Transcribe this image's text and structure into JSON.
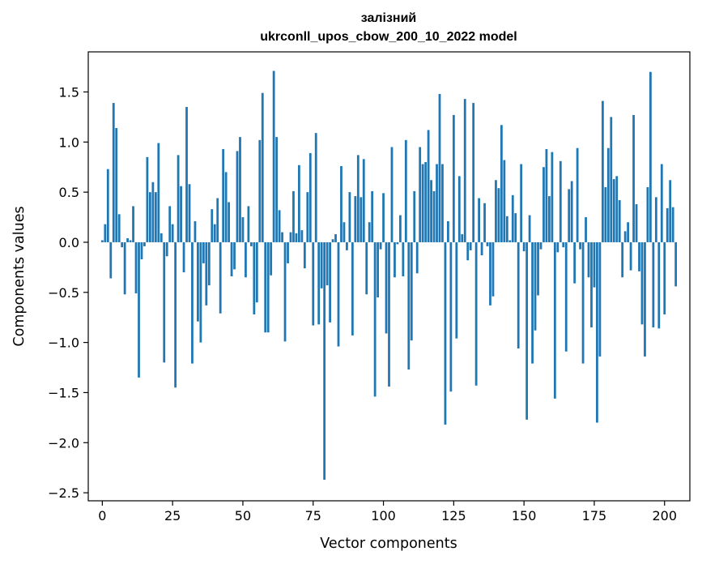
{
  "chart_data": {
    "type": "bar",
    "title_line1": "залізний",
    "title_line2": "ukrconll_upos_cbow_200_10_2022 model",
    "xlabel": "Vector components",
    "ylabel": "Components values",
    "xlim": [
      -5,
      209
    ],
    "ylim": [
      -2.58,
      1.9
    ],
    "xticks": [
      0,
      25,
      50,
      75,
      100,
      125,
      150,
      175,
      200
    ],
    "yticks": [
      -2.5,
      -2.0,
      -1.5,
      -1.0,
      -0.5,
      0.0,
      0.5,
      1.0,
      1.5
    ],
    "ytick_labels": [
      "−2.5",
      "−2.0",
      "−1.5",
      "−1.0",
      "−0.5",
      "0.0",
      "0.5",
      "1.0",
      "1.5"
    ],
    "xtick_labels": [
      "0",
      "25",
      "50",
      "75",
      "100",
      "125",
      "150",
      "175",
      "200"
    ],
    "bar_color": "#1f77b4",
    "values": [
      0.02,
      0.18,
      0.73,
      -0.36,
      1.39,
      1.14,
      0.28,
      -0.05,
      -0.52,
      0.04,
      0.02,
      0.36,
      -0.51,
      -1.35,
      -0.17,
      -0.04,
      0.85,
      0.5,
      0.6,
      0.5,
      0.99,
      0.09,
      -1.2,
      -0.14,
      0.36,
      0.18,
      -1.45,
      0.87,
      0.56,
      -0.3,
      1.35,
      0.58,
      -1.21,
      0.21,
      -0.79,
      -1.0,
      -0.21,
      -0.63,
      -0.43,
      0.33,
      0.18,
      0.44,
      -0.71,
      0.93,
      0.7,
      0.4,
      -0.34,
      -0.27,
      0.91,
      1.05,
      0.25,
      -0.35,
      0.36,
      -0.04,
      -0.72,
      -0.6,
      1.02,
      1.49,
      -0.9,
      -0.9,
      -0.33,
      1.71,
      1.05,
      0.32,
      0.1,
      -0.99,
      -0.21,
      0.1,
      0.51,
      0.09,
      0.77,
      0.12,
      -0.26,
      0.5,
      0.89,
      -0.83,
      1.09,
      -0.82,
      -0.46,
      -2.37,
      -0.43,
      -0.8,
      0.03,
      0.08,
      -1.04,
      0.76,
      0.2,
      -0.08,
      0.5,
      -0.93,
      0.46,
      0.87,
      0.45,
      0.83,
      -0.52,
      0.2,
      0.51,
      -1.54,
      -0.55,
      -0.07,
      0.49,
      -0.91,
      -1.44,
      0.95,
      -0.35,
      -0.02,
      0.27,
      -0.34,
      1.02,
      -1.27,
      -0.98,
      0.51,
      -0.31,
      0.95,
      0.78,
      0.8,
      1.12,
      0.62,
      0.51,
      0.78,
      1.48,
      0.78,
      -1.82,
      0.21,
      -1.49,
      1.27,
      -0.96,
      0.66,
      0.08,
      1.43,
      -0.18,
      -0.08,
      1.39,
      -1.43,
      0.44,
      -0.13,
      0.39,
      -0.04,
      -0.63,
      -0.54,
      0.62,
      0.54,
      1.17,
      0.82,
      0.26,
      0.02,
      0.47,
      0.29,
      -1.06,
      0.78,
      -0.09,
      -1.77,
      0.27,
      -1.21,
      -0.88,
      -0.53,
      -0.07,
      0.75,
      0.93,
      0.46,
      0.9,
      -1.56,
      -0.1,
      0.81,
      -0.05,
      -1.09,
      0.53,
      0.61,
      -0.41,
      0.94,
      -0.07,
      -1.21,
      0.25,
      -0.35,
      -0.85,
      -0.45,
      -1.8,
      -1.14,
      1.41,
      0.55,
      0.94,
      1.25,
      0.63,
      0.66,
      0.42,
      -0.35,
      0.11,
      0.2,
      -0.28,
      1.27,
      0.38,
      -0.29,
      -0.82,
      -1.14,
      0.55,
      1.7,
      -0.85,
      0.45,
      -0.86,
      0.78,
      -0.72,
      0.34,
      0.62,
      0.35,
      -0.44
    ]
  }
}
